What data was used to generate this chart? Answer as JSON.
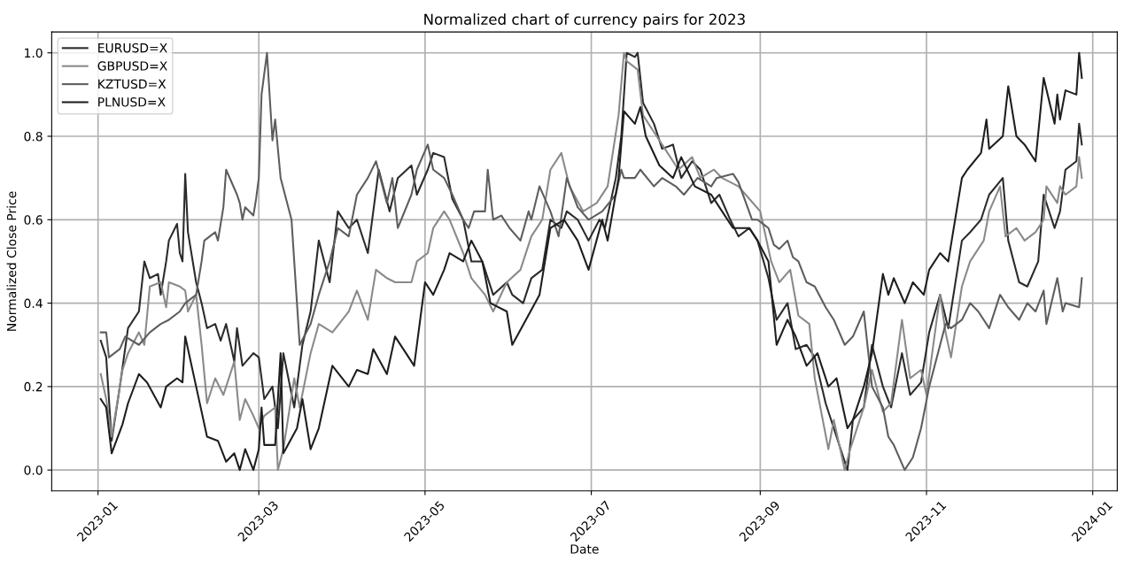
{
  "chart_data": {
    "type": "line",
    "title": "Normalized chart of currency pairs for 2023",
    "xlabel": "Date",
    "ylabel": "Normalized Close Price",
    "xlim": [
      "2022-12-15",
      "2024-01-10"
    ],
    "ylim": [
      -0.05,
      1.05
    ],
    "xticks": [
      {
        "value": "2023-01",
        "label": "2023-01"
      },
      {
        "value": "2023-03",
        "label": "2023-03"
      },
      {
        "value": "2023-05",
        "label": "2023-05"
      },
      {
        "value": "2023-07",
        "label": "2023-07"
      },
      {
        "value": "2023-09",
        "label": "2023-09"
      },
      {
        "value": "2023-11",
        "label": "2023-11"
      },
      {
        "value": "2024-01",
        "label": "2024-01"
      }
    ],
    "yticks": [
      {
        "value": 0,
        "label": "0.0"
      },
      {
        "value": 0.2,
        "label": "0.2"
      },
      {
        "value": 0.4,
        "label": "0.4"
      },
      {
        "value": 0.6,
        "label": "0.6"
      },
      {
        "value": 0.8,
        "label": "0.8"
      },
      {
        "value": 1,
        "label": "1.0"
      }
    ],
    "grid": true,
    "legend": "top left",
    "line_style": "solid",
    "marker": "none",
    "series": [
      {
        "name": "EURUSD=X",
        "color": "#2b2b2b",
        "x": [
          "2023-01-02",
          "2023-01-04",
          "2023-01-06",
          "2023-01-09",
          "2023-01-12",
          "2023-01-16",
          "2023-01-18",
          "2023-01-20",
          "2023-01-23",
          "2023-01-24",
          "2023-01-26",
          "2023-01-27",
          "2023-01-30",
          "2023-01-31",
          "2023-02-01",
          "2023-02-02",
          "2023-02-03",
          "2023-02-06",
          "2023-02-08",
          "2023-02-10",
          "2023-02-13",
          "2023-02-15",
          "2023-02-17",
          "2023-02-20",
          "2023-02-21",
          "2023-02-23",
          "2023-02-27",
          "2023-03-01",
          "2023-03-03",
          "2023-03-06",
          "2023-03-08",
          "2023-03-10",
          "2023-03-14",
          "2023-03-17",
          "2023-03-20",
          "2023-03-23",
          "2023-03-27",
          "2023-03-30",
          "2023-04-03",
          "2023-04-06",
          "2023-04-10",
          "2023-04-14",
          "2023-04-18",
          "2023-04-21",
          "2023-04-26",
          "2023-04-28",
          "2023-05-02",
          "2023-05-04",
          "2023-05-08",
          "2023-05-11",
          "2023-05-15",
          "2023-05-18",
          "2023-05-22",
          "2023-05-26",
          "2023-05-31",
          "2023-06-02",
          "2023-06-06",
          "2023-06-09",
          "2023-06-13",
          "2023-06-16",
          "2023-06-20",
          "2023-06-22",
          "2023-06-26",
          "2023-06-30",
          "2023-07-04",
          "2023-07-06",
          "2023-07-10",
          "2023-07-12",
          "2023-07-14",
          "2023-07-17",
          "2023-07-18",
          "2023-07-20",
          "2023-07-24",
          "2023-07-27",
          "2023-07-31",
          "2023-08-03",
          "2023-08-07",
          "2023-08-10",
          "2023-08-14",
          "2023-08-17",
          "2023-08-21",
          "2023-08-24",
          "2023-08-28",
          "2023-08-31",
          "2023-09-04",
          "2023-09-07",
          "2023-09-11",
          "2023-09-14",
          "2023-09-18",
          "2023-09-21",
          "2023-09-25",
          "2023-09-28",
          "2023-10-03",
          "2023-10-05",
          "2023-10-09",
          "2023-10-12",
          "2023-10-16",
          "2023-10-19",
          "2023-10-23",
          "2023-10-26",
          "2023-10-30",
          "2023-11-02",
          "2023-11-06",
          "2023-11-09",
          "2023-11-14",
          "2023-11-17",
          "2023-11-21",
          "2023-11-24",
          "2023-11-29",
          "2023-12-01",
          "2023-12-05",
          "2023-12-08",
          "2023-12-12",
          "2023-12-14",
          "2023-12-18",
          "2023-12-20",
          "2023-12-22",
          "2023-12-26",
          "2023-12-27",
          "2023-12-28"
        ],
        "values": [
          0.31,
          0.27,
          0.07,
          0.2,
          0.34,
          0.38,
          0.5,
          0.46,
          0.47,
          0.42,
          0.5,
          0.55,
          0.59,
          0.52,
          0.5,
          0.71,
          0.57,
          0.45,
          0.4,
          0.34,
          0.35,
          0.31,
          0.35,
          0.26,
          0.34,
          0.25,
          0.28,
          0.27,
          0.17,
          0.2,
          0.1,
          0.28,
          0.15,
          0.3,
          0.38,
          0.55,
          0.45,
          0.62,
          0.58,
          0.6,
          0.52,
          0.72,
          0.62,
          0.7,
          0.73,
          0.66,
          0.72,
          0.76,
          0.75,
          0.65,
          0.6,
          0.5,
          0.5,
          0.42,
          0.45,
          0.42,
          0.4,
          0.46,
          0.48,
          0.6,
          0.58,
          0.62,
          0.6,
          0.55,
          0.6,
          0.58,
          0.7,
          0.8,
          1.0,
          0.99,
          1.0,
          0.88,
          0.83,
          0.77,
          0.78,
          0.7,
          0.74,
          0.72,
          0.64,
          0.66,
          0.6,
          0.56,
          0.58,
          0.55,
          0.46,
          0.36,
          0.4,
          0.29,
          0.3,
          0.27,
          0.16,
          0.1,
          0.0,
          0.12,
          0.15,
          0.3,
          0.2,
          0.15,
          0.28,
          0.18,
          0.21,
          0.33,
          0.42,
          0.34,
          0.55,
          0.57,
          0.6,
          0.66,
          0.7,
          0.55,
          0.45,
          0.44,
          0.5,
          0.66,
          0.58,
          0.62,
          0.72,
          0.74,
          0.83,
          0.78
        ]
      },
      {
        "name": "GBPUSD=X",
        "color": "#8a8a8a",
        "x": [
          "2023-01-02",
          "2023-01-04",
          "2023-01-06",
          "2023-01-10",
          "2023-01-12",
          "2023-01-16",
          "2023-01-18",
          "2023-01-20",
          "2023-01-24",
          "2023-01-26",
          "2023-01-27",
          "2023-01-31",
          "2023-02-02",
          "2023-02-03",
          "2023-02-06",
          "2023-02-08",
          "2023-02-10",
          "2023-02-13",
          "2023-02-16",
          "2023-02-20",
          "2023-02-22",
          "2023-02-24",
          "2023-02-27",
          "2023-03-01",
          "2023-03-03",
          "2023-03-07",
          "2023-03-08",
          "2023-03-10",
          "2023-03-14",
          "2023-03-16",
          "2023-03-20",
          "2023-03-23",
          "2023-03-28",
          "2023-04-03",
          "2023-04-06",
          "2023-04-10",
          "2023-04-13",
          "2023-04-17",
          "2023-04-20",
          "2023-04-26",
          "2023-04-28",
          "2023-05-02",
          "2023-05-04",
          "2023-05-08",
          "2023-05-10",
          "2023-05-15",
          "2023-05-18",
          "2023-05-23",
          "2023-05-26",
          "2023-05-31",
          "2023-06-05",
          "2023-06-09",
          "2023-06-13",
          "2023-06-16",
          "2023-06-20",
          "2023-06-23",
          "2023-06-28",
          "2023-07-03",
          "2023-07-07",
          "2023-07-11",
          "2023-07-13",
          "2023-07-14",
          "2023-07-18",
          "2023-07-20",
          "2023-07-25",
          "2023-07-28",
          "2023-08-02",
          "2023-08-07",
          "2023-08-10",
          "2023-08-15",
          "2023-08-18",
          "2023-08-24",
          "2023-08-28",
          "2023-09-01",
          "2023-09-05",
          "2023-09-08",
          "2023-09-12",
          "2023-09-15",
          "2023-09-19",
          "2023-09-21",
          "2023-09-26",
          "2023-09-28",
          "2023-10-02",
          "2023-10-04",
          "2023-10-09",
          "2023-10-12",
          "2023-10-16",
          "2023-10-19",
          "2023-10-23",
          "2023-10-26",
          "2023-10-30",
          "2023-11-01",
          "2023-11-06",
          "2023-11-08",
          "2023-11-10",
          "2023-11-14",
          "2023-11-17",
          "2023-11-22",
          "2023-11-24",
          "2023-11-28",
          "2023-11-30",
          "2023-12-04",
          "2023-12-07",
          "2023-12-11",
          "2023-12-14",
          "2023-12-15",
          "2023-12-19",
          "2023-12-20",
          "2023-12-22",
          "2023-12-26",
          "2023-12-27",
          "2023-12-28"
        ],
        "values": [
          0.23,
          0.17,
          0.08,
          0.24,
          0.28,
          0.33,
          0.3,
          0.44,
          0.45,
          0.39,
          0.45,
          0.44,
          0.43,
          0.38,
          0.42,
          0.3,
          0.16,
          0.22,
          0.18,
          0.26,
          0.12,
          0.17,
          0.13,
          0.1,
          0.13,
          0.15,
          0.0,
          0.05,
          0.22,
          0.15,
          0.28,
          0.35,
          0.33,
          0.38,
          0.43,
          0.36,
          0.48,
          0.46,
          0.45,
          0.45,
          0.5,
          0.52,
          0.58,
          0.62,
          0.6,
          0.52,
          0.46,
          0.42,
          0.38,
          0.45,
          0.48,
          0.56,
          0.6,
          0.72,
          0.76,
          0.68,
          0.62,
          0.64,
          0.68,
          0.85,
          1.0,
          0.98,
          0.96,
          0.85,
          0.8,
          0.77,
          0.72,
          0.75,
          0.7,
          0.72,
          0.7,
          0.68,
          0.65,
          0.62,
          0.5,
          0.45,
          0.48,
          0.37,
          0.35,
          0.22,
          0.05,
          0.12,
          0.0,
          0.05,
          0.15,
          0.24,
          0.14,
          0.16,
          0.36,
          0.22,
          0.24,
          0.18,
          0.42,
          0.33,
          0.27,
          0.44,
          0.5,
          0.55,
          0.62,
          0.68,
          0.56,
          0.58,
          0.55,
          0.57,
          0.6,
          0.68,
          0.64,
          0.68,
          0.66,
          0.68,
          0.75,
          0.7
        ]
      },
      {
        "name": "KZTUSD=X",
        "color": "#5e5e5e",
        "x": [
          "2023-01-02",
          "2023-01-04",
          "2023-01-05",
          "2023-01-09",
          "2023-01-11",
          "2023-01-16",
          "2023-01-20",
          "2023-01-24",
          "2023-01-27",
          "2023-01-31",
          "2023-02-02",
          "2023-02-06",
          "2023-02-08",
          "2023-02-09",
          "2023-02-13",
          "2023-02-14",
          "2023-02-16",
          "2023-02-17",
          "2023-02-21",
          "2023-02-22",
          "2023-02-23",
          "2023-02-24",
          "2023-02-27",
          "2023-02-28",
          "2023-03-01",
          "2023-03-02",
          "2023-03-04",
          "2023-03-06",
          "2023-03-07",
          "2023-03-09",
          "2023-03-13",
          "2023-03-16",
          "2023-03-20",
          "2023-03-23",
          "2023-03-27",
          "2023-03-30",
          "2023-04-03",
          "2023-04-06",
          "2023-04-10",
          "2023-04-13",
          "2023-04-17",
          "2023-04-19",
          "2023-04-21",
          "2023-04-26",
          "2023-04-28",
          "2023-05-02",
          "2023-05-04",
          "2023-05-08",
          "2023-05-11",
          "2023-05-15",
          "2023-05-17",
          "2023-05-19",
          "2023-05-23",
          "2023-05-24",
          "2023-05-26",
          "2023-05-29",
          "2023-06-01",
          "2023-06-05",
          "2023-06-08",
          "2023-06-09",
          "2023-06-12",
          "2023-06-16",
          "2023-06-19",
          "2023-06-22",
          "2023-06-26",
          "2023-06-30",
          "2023-07-05",
          "2023-07-10",
          "2023-07-12",
          "2023-07-13",
          "2023-07-17",
          "2023-07-19",
          "2023-07-24",
          "2023-07-27",
          "2023-08-01",
          "2023-08-04",
          "2023-08-09",
          "2023-08-14",
          "2023-08-16",
          "2023-08-22",
          "2023-08-24",
          "2023-08-29",
          "2023-08-31",
          "2023-09-04",
          "2023-09-06",
          "2023-09-08",
          "2023-09-11",
          "2023-09-13",
          "2023-09-15",
          "2023-09-18",
          "2023-09-21",
          "2023-09-25",
          "2023-09-28",
          "2023-10-02",
          "2023-10-05",
          "2023-10-09",
          "2023-10-12",
          "2023-10-16",
          "2023-10-18",
          "2023-10-20",
          "2023-10-24",
          "2023-10-27",
          "2023-10-30",
          "2023-11-02",
          "2023-11-06",
          "2023-11-08",
          "2023-11-10",
          "2023-11-14",
          "2023-11-17",
          "2023-11-20",
          "2023-11-24",
          "2023-11-28",
          "2023-12-01",
          "2023-12-05",
          "2023-12-08",
          "2023-12-11",
          "2023-12-14",
          "2023-12-15",
          "2023-12-19",
          "2023-12-21",
          "2023-12-22",
          "2023-12-27",
          "2023-12-28"
        ],
        "values": [
          0.33,
          0.33,
          0.27,
          0.29,
          0.32,
          0.3,
          0.33,
          0.35,
          0.36,
          0.38,
          0.4,
          0.42,
          0.5,
          0.55,
          0.57,
          0.55,
          0.63,
          0.72,
          0.66,
          0.64,
          0.6,
          0.63,
          0.61,
          0.65,
          0.7,
          0.9,
          1.0,
          0.79,
          0.84,
          0.7,
          0.6,
          0.3,
          0.35,
          0.42,
          0.5,
          0.58,
          0.56,
          0.66,
          0.7,
          0.74,
          0.64,
          0.7,
          0.58,
          0.66,
          0.72,
          0.78,
          0.72,
          0.7,
          0.66,
          0.6,
          0.58,
          0.62,
          0.62,
          0.72,
          0.6,
          0.61,
          0.58,
          0.55,
          0.62,
          0.6,
          0.68,
          0.62,
          0.56,
          0.7,
          0.63,
          0.6,
          0.62,
          0.66,
          0.72,
          0.7,
          0.7,
          0.72,
          0.68,
          0.7,
          0.68,
          0.66,
          0.7,
          0.68,
          0.7,
          0.71,
          0.69,
          0.6,
          0.6,
          0.58,
          0.54,
          0.53,
          0.55,
          0.51,
          0.5,
          0.45,
          0.44,
          0.39,
          0.36,
          0.3,
          0.32,
          0.38,
          0.2,
          0.15,
          0.08,
          0.06,
          0.0,
          0.03,
          0.1,
          0.2,
          0.3,
          0.35,
          0.34,
          0.36,
          0.4,
          0.38,
          0.34,
          0.42,
          0.39,
          0.36,
          0.4,
          0.38,
          0.43,
          0.35,
          0.46,
          0.38,
          0.4,
          0.39,
          0.46
        ]
      },
      {
        "name": "PLNUSD=X",
        "color": "#1e1e1e",
        "x": [
          "2023-01-02",
          "2023-01-04",
          "2023-01-06",
          "2023-01-10",
          "2023-01-12",
          "2023-01-16",
          "2023-01-19",
          "2023-01-24",
          "2023-01-26",
          "2023-01-30",
          "2023-02-01",
          "2023-02-02",
          "2023-02-06",
          "2023-02-10",
          "2023-02-14",
          "2023-02-17",
          "2023-02-20",
          "2023-02-22",
          "2023-02-24",
          "2023-02-27",
          "2023-03-01",
          "2023-03-02",
          "2023-03-03",
          "2023-03-07",
          "2023-03-09",
          "2023-03-10",
          "2023-03-15",
          "2023-03-17",
          "2023-03-20",
          "2023-03-23",
          "2023-03-28",
          "2023-04-03",
          "2023-04-06",
          "2023-04-10",
          "2023-04-12",
          "2023-04-17",
          "2023-04-20",
          "2023-04-24",
          "2023-04-27",
          "2023-05-01",
          "2023-05-04",
          "2023-05-08",
          "2023-05-10",
          "2023-05-15",
          "2023-05-18",
          "2023-05-22",
          "2023-05-25",
          "2023-05-31",
          "2023-06-02",
          "2023-06-07",
          "2023-06-12",
          "2023-06-16",
          "2023-06-21",
          "2023-06-26",
          "2023-06-30",
          "2023-07-05",
          "2023-07-07",
          "2023-07-11",
          "2023-07-13",
          "2023-07-17",
          "2023-07-19",
          "2023-07-21",
          "2023-07-26",
          "2023-07-31",
          "2023-08-03",
          "2023-08-08",
          "2023-08-14",
          "2023-08-18",
          "2023-08-22",
          "2023-08-28",
          "2023-08-31",
          "2023-09-04",
          "2023-09-07",
          "2023-09-11",
          "2023-09-14",
          "2023-09-18",
          "2023-09-22",
          "2023-09-26",
          "2023-09-29",
          "2023-10-03",
          "2023-10-05",
          "2023-10-09",
          "2023-10-12",
          "2023-10-16",
          "2023-10-18",
          "2023-10-20",
          "2023-10-24",
          "2023-10-27",
          "2023-10-31",
          "2023-11-02",
          "2023-11-06",
          "2023-11-09",
          "2023-11-14",
          "2023-11-16",
          "2023-11-21",
          "2023-11-23",
          "2023-11-24",
          "2023-11-29",
          "2023-12-01",
          "2023-12-04",
          "2023-12-07",
          "2023-12-11",
          "2023-12-14",
          "2023-12-18",
          "2023-12-19",
          "2023-12-20",
          "2023-12-22",
          "2023-12-26",
          "2023-12-27",
          "2023-12-28"
        ],
        "values": [
          0.17,
          0.15,
          0.04,
          0.11,
          0.16,
          0.23,
          0.21,
          0.15,
          0.2,
          0.22,
          0.21,
          0.32,
          0.2,
          0.08,
          0.07,
          0.02,
          0.04,
          0.0,
          0.05,
          0.0,
          0.05,
          0.15,
          0.06,
          0.06,
          0.28,
          0.04,
          0.1,
          0.17,
          0.05,
          0.1,
          0.25,
          0.2,
          0.24,
          0.23,
          0.29,
          0.23,
          0.32,
          0.28,
          0.25,
          0.45,
          0.42,
          0.48,
          0.52,
          0.5,
          0.55,
          0.5,
          0.4,
          0.38,
          0.3,
          0.36,
          0.42,
          0.58,
          0.6,
          0.55,
          0.48,
          0.6,
          0.55,
          0.7,
          0.86,
          0.83,
          0.87,
          0.8,
          0.73,
          0.7,
          0.75,
          0.68,
          0.66,
          0.62,
          0.58,
          0.58,
          0.55,
          0.5,
          0.3,
          0.36,
          0.32,
          0.25,
          0.28,
          0.2,
          0.22,
          0.1,
          0.12,
          0.2,
          0.28,
          0.47,
          0.42,
          0.46,
          0.4,
          0.45,
          0.42,
          0.48,
          0.52,
          0.5,
          0.7,
          0.72,
          0.76,
          0.84,
          0.77,
          0.8,
          0.92,
          0.8,
          0.78,
          0.74,
          0.94,
          0.83,
          0.9,
          0.84,
          0.91,
          0.9,
          1.0,
          0.94
        ]
      }
    ]
  }
}
